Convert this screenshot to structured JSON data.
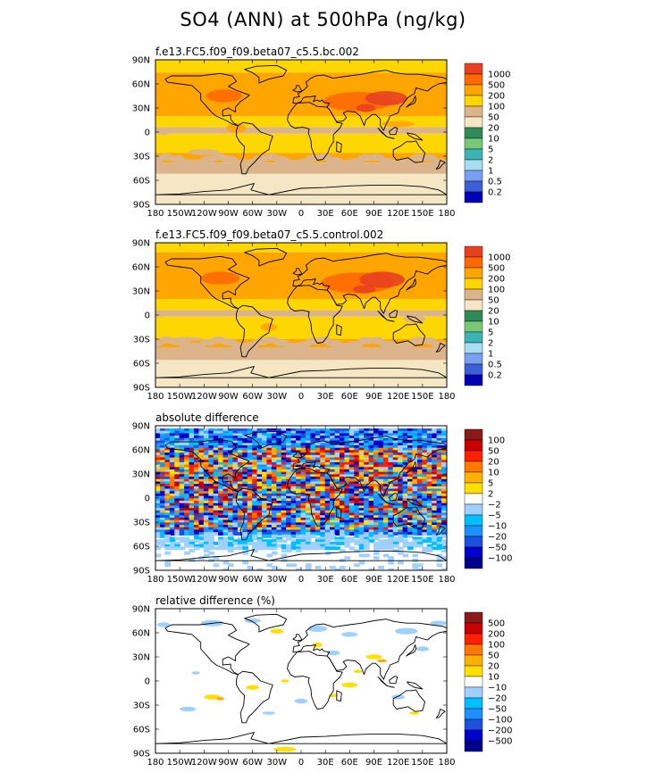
{
  "title": "SO4 (ANN) at 500hPa (ng/kg)",
  "colors": {
    "abs": [
      "#0000b4",
      "#3c5ed6",
      "#78a0f0",
      "#a8dcf0",
      "#3cb4b4",
      "#78c878",
      "#2e8b57",
      "#f5e6c4",
      "#dcb48c",
      "#ffd700",
      "#ffa500",
      "#ff6a00",
      "#e84020",
      "#b01e1e"
    ],
    "diff": [
      "#00008b",
      "#0000cd",
      "#1e50e0",
      "#1e90ff",
      "#00bfff",
      "#a0d0ff",
      "#ffffff",
      "#ffe000",
      "#ffb000",
      "#ff7800",
      "#ff2000",
      "#c80000",
      "#8b1a1a"
    ]
  },
  "chart_data": [
    {
      "type": "heatmap",
      "panel": "top",
      "title": "f.e13.FC5.f09_f09.beta07_c5.5.bc.002",
      "x_ticks": [
        "180",
        "150W",
        "120W",
        "90W",
        "60W",
        "30W",
        "0",
        "30E",
        "60E",
        "90E",
        "120E",
        "150E",
        "180"
      ],
      "y_ticks": [
        "90N",
        "60N",
        "30N",
        "0",
        "30S",
        "60S",
        "90S"
      ],
      "colorbar": [
        "1000",
        "500",
        "200",
        "100",
        "50",
        "20",
        "10",
        "5",
        "2",
        "1",
        "0.5",
        "0.2"
      ]
    },
    {
      "type": "heatmap",
      "panel": "control",
      "title": "f.e13.FC5.f09_f09.beta07_c5.5.control.002",
      "x_ticks": [
        "180",
        "150W",
        "120W",
        "90W",
        "60W",
        "30W",
        "0",
        "30E",
        "60E",
        "90E",
        "120E",
        "150E",
        "180"
      ],
      "y_ticks": [
        "90N",
        "60N",
        "30N",
        "0",
        "30S",
        "60S",
        "90S"
      ],
      "colorbar": [
        "1000",
        "500",
        "200",
        "100",
        "50",
        "20",
        "10",
        "5",
        "2",
        "1",
        "0.5",
        "0.2"
      ]
    },
    {
      "type": "heatmap",
      "panel": "absdiff",
      "title": "absolute difference",
      "x_ticks": [
        "180",
        "150W",
        "120W",
        "90W",
        "60W",
        "30W",
        "0",
        "30E",
        "60E",
        "90E",
        "120E",
        "150E",
        "180"
      ],
      "y_ticks": [
        "90N",
        "60N",
        "30N",
        "0",
        "30S",
        "60S",
        "90S"
      ],
      "colorbar": [
        "100",
        "50",
        "20",
        "10",
        "5",
        "2",
        "−2",
        "−5",
        "−10",
        "−20",
        "−50",
        "−100"
      ]
    },
    {
      "type": "heatmap",
      "panel": "reldiff",
      "title": "relative difference (%)",
      "x_ticks": [
        "180",
        "150W",
        "120W",
        "90W",
        "60W",
        "30W",
        "0",
        "30E",
        "60E",
        "90E",
        "120E",
        "150E",
        "180"
      ],
      "y_ticks": [
        "90N",
        "60N",
        "30N",
        "0",
        "30S",
        "60S",
        "90S"
      ],
      "colorbar": [
        "500",
        "200",
        "100",
        "50",
        "20",
        "10",
        "−10",
        "−20",
        "−50",
        "−100",
        "−200",
        "−500"
      ]
    }
  ]
}
